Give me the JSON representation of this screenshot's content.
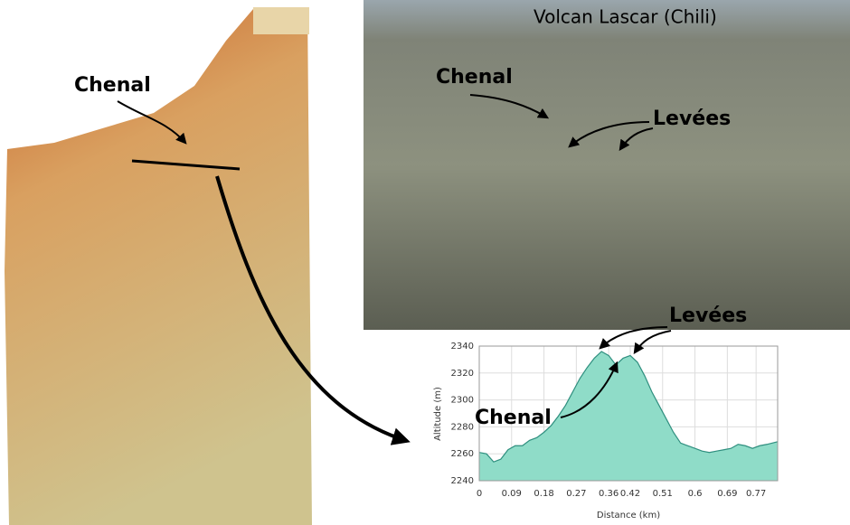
{
  "map": {
    "label": "Chenal"
  },
  "photo": {
    "title": "Volcan Lascar (Chili)",
    "channel_label": "Chenal",
    "levee_label": "Levées"
  },
  "chart_data": {
    "type": "area",
    "xlabel": "Distance (km)",
    "ylabel": "Altitude (m)",
    "annotations": {
      "levees": "Levées",
      "channel": "Chenal"
    },
    "x": [
      0,
      0.02,
      0.04,
      0.06,
      0.08,
      0.1,
      0.12,
      0.14,
      0.16,
      0.18,
      0.2,
      0.22,
      0.24,
      0.26,
      0.28,
      0.3,
      0.32,
      0.34,
      0.36,
      0.38,
      0.4,
      0.42,
      0.44,
      0.46,
      0.48,
      0.5,
      0.52,
      0.54,
      0.56,
      0.58,
      0.6,
      0.62,
      0.64,
      0.66,
      0.68,
      0.7,
      0.72,
      0.74,
      0.76,
      0.78,
      0.8,
      0.83
    ],
    "series": [
      {
        "name": "Altitude",
        "color": "#8fdcc8",
        "values": [
          2261,
          2260,
          2254,
          2256,
          2263,
          2266,
          2266,
          2270,
          2272,
          2276,
          2281,
          2288,
          2296,
          2306,
          2316,
          2324,
          2331,
          2336,
          2333,
          2326,
          2331,
          2333,
          2328,
          2318,
          2306,
          2296,
          2286,
          2276,
          2268,
          2266,
          2264,
          2262,
          2261,
          2262,
          2263,
          2264,
          2267,
          2266,
          2264,
          2266,
          2267,
          2269
        ]
      }
    ],
    "xlim": [
      0,
      0.83
    ],
    "xticks": [
      0,
      0.09,
      0.18,
      0.27,
      0.36,
      0.42,
      0.51,
      0.6,
      0.69,
      0.77
    ],
    "ylim": [
      2240,
      2340
    ],
    "yticks": [
      2240,
      2260,
      2280,
      2300,
      2320,
      2340
    ],
    "grid": true
  }
}
